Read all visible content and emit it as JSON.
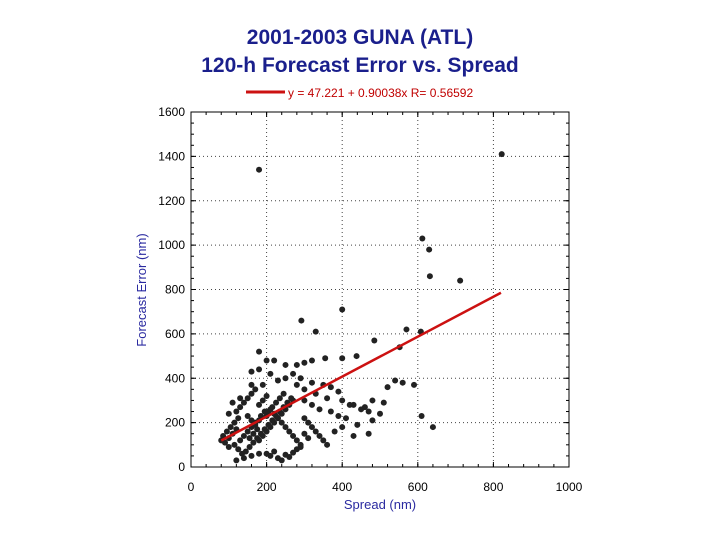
{
  "chart_data": {
    "type": "scatter",
    "title_line1": "2001-2003 GUNA (ATL)",
    "title_line2": "120-h Forecast Error vs. Spread",
    "xlabel": "Spread (nm)",
    "ylabel": "Forecast Error (nm)",
    "xlim": [
      0,
      1000
    ],
    "ylim": [
      0,
      1600
    ],
    "xticks": [
      0,
      200,
      400,
      600,
      800,
      1000
    ],
    "yticks": [
      0,
      200,
      400,
      600,
      800,
      1000,
      1200,
      1400,
      1600
    ],
    "grid": true,
    "legend": {
      "label": "y = 47.221 + 0.90038x   R= 0.56592",
      "color": "#cc1111",
      "placement": "top-center"
    },
    "fit_line": {
      "intercept": 47.221,
      "slope": 0.90038,
      "x_range": [
        80,
        820
      ],
      "color": "#cc1111"
    },
    "marker_color": "#222222",
    "points": [
      [
        180,
        1340
      ],
      [
        822,
        1410
      ],
      [
        612,
        1030
      ],
      [
        630,
        980
      ],
      [
        632,
        860
      ],
      [
        712,
        840
      ],
      [
        400,
        710
      ],
      [
        292,
        660
      ],
      [
        330,
        610
      ],
      [
        570,
        620
      ],
      [
        608,
        610
      ],
      [
        552,
        540
      ],
      [
        485,
        570
      ],
      [
        438,
        500
      ],
      [
        400,
        490
      ],
      [
        355,
        490
      ],
      [
        320,
        480
      ],
      [
        300,
        470
      ],
      [
        180,
        520
      ],
      [
        200,
        480
      ],
      [
        220,
        480
      ],
      [
        250,
        460
      ],
      [
        280,
        460
      ],
      [
        160,
        430
      ],
      [
        180,
        440
      ],
      [
        210,
        420
      ],
      [
        270,
        420
      ],
      [
        290,
        400
      ],
      [
        250,
        400
      ],
      [
        230,
        390
      ],
      [
        320,
        380
      ],
      [
        350,
        370
      ],
      [
        370,
        360
      ],
      [
        390,
        340
      ],
      [
        160,
        370
      ],
      [
        190,
        370
      ],
      [
        280,
        370
      ],
      [
        300,
        350
      ],
      [
        330,
        330
      ],
      [
        360,
        310
      ],
      [
        400,
        300
      ],
      [
        430,
        280
      ],
      [
        480,
        300
      ],
      [
        510,
        290
      ],
      [
        420,
        280
      ],
      [
        450,
        260
      ],
      [
        470,
        250
      ],
      [
        500,
        240
      ],
      [
        300,
        300
      ],
      [
        320,
        280
      ],
      [
        340,
        260
      ],
      [
        370,
        250
      ],
      [
        390,
        230
      ],
      [
        410,
        220
      ],
      [
        460,
        270
      ],
      [
        480,
        210
      ],
      [
        440,
        190
      ],
      [
        400,
        180
      ],
      [
        430,
        140
      ],
      [
        470,
        150
      ],
      [
        610,
        230
      ],
      [
        640,
        180
      ],
      [
        560,
        380
      ],
      [
        590,
        370
      ],
      [
        540,
        390
      ],
      [
        520,
        360
      ],
      [
        100,
        130
      ],
      [
        110,
        150
      ],
      [
        120,
        170
      ],
      [
        130,
        120
      ],
      [
        140,
        140
      ],
      [
        150,
        160
      ],
      [
        160,
        180
      ],
      [
        170,
        200
      ],
      [
        180,
        120
      ],
      [
        190,
        140
      ],
      [
        200,
        160
      ],
      [
        210,
        180
      ],
      [
        220,
        200
      ],
      [
        230,
        220
      ],
      [
        240,
        240
      ],
      [
        250,
        260
      ],
      [
        260,
        280
      ],
      [
        270,
        300
      ],
      [
        90,
        110
      ],
      [
        100,
        90
      ],
      [
        115,
        100
      ],
      [
        125,
        80
      ],
      [
        135,
        60
      ],
      [
        145,
        70
      ],
      [
        155,
        90
      ],
      [
        165,
        110
      ],
      [
        175,
        130
      ],
      [
        185,
        150
      ],
      [
        195,
        170
      ],
      [
        205,
        190
      ],
      [
        215,
        210
      ],
      [
        225,
        230
      ],
      [
        235,
        250
      ],
      [
        245,
        270
      ],
      [
        255,
        290
      ],
      [
        265,
        310
      ],
      [
        120,
        250
      ],
      [
        130,
        270
      ],
      [
        140,
        290
      ],
      [
        150,
        230
      ],
      [
        160,
        210
      ],
      [
        170,
        190
      ],
      [
        180,
        280
      ],
      [
        190,
        300
      ],
      [
        200,
        320
      ],
      [
        210,
        260
      ],
      [
        220,
        240
      ],
      [
        230,
        220
      ],
      [
        240,
        200
      ],
      [
        250,
        180
      ],
      [
        260,
        160
      ],
      [
        270,
        140
      ],
      [
        280,
        120
      ],
      [
        290,
        100
      ],
      [
        200,
        60
      ],
      [
        210,
        50
      ],
      [
        220,
        70
      ],
      [
        230,
        40
      ],
      [
        240,
        30
      ],
      [
        250,
        55
      ],
      [
        260,
        45
      ],
      [
        270,
        65
      ],
      [
        120,
        30
      ],
      [
        140,
        40
      ],
      [
        160,
        50
      ],
      [
        180,
        60
      ],
      [
        300,
        220
      ],
      [
        310,
        200
      ],
      [
        320,
        180
      ],
      [
        330,
        160
      ],
      [
        340,
        140
      ],
      [
        350,
        120
      ],
      [
        360,
        100
      ],
      [
        380,
        160
      ],
      [
        300,
        150
      ],
      [
        310,
        130
      ],
      [
        290,
        90
      ],
      [
        280,
        80
      ],
      [
        200,
        230
      ],
      [
        205,
        250
      ],
      [
        215,
        270
      ],
      [
        225,
        290
      ],
      [
        235,
        310
      ],
      [
        245,
        330
      ],
      [
        150,
        310
      ],
      [
        160,
        330
      ],
      [
        170,
        350
      ],
      [
        130,
        310
      ],
      [
        110,
        290
      ],
      [
        100,
        240
      ],
      [
        80,
        120
      ],
      [
        85,
        140
      ],
      [
        95,
        160
      ],
      [
        105,
        180
      ],
      [
        115,
        200
      ],
      [
        125,
        220
      ],
      [
        180,
        210
      ],
      [
        185,
        230
      ],
      [
        195,
        250
      ],
      [
        175,
        170
      ],
      [
        165,
        150
      ],
      [
        155,
        130
      ]
    ]
  }
}
